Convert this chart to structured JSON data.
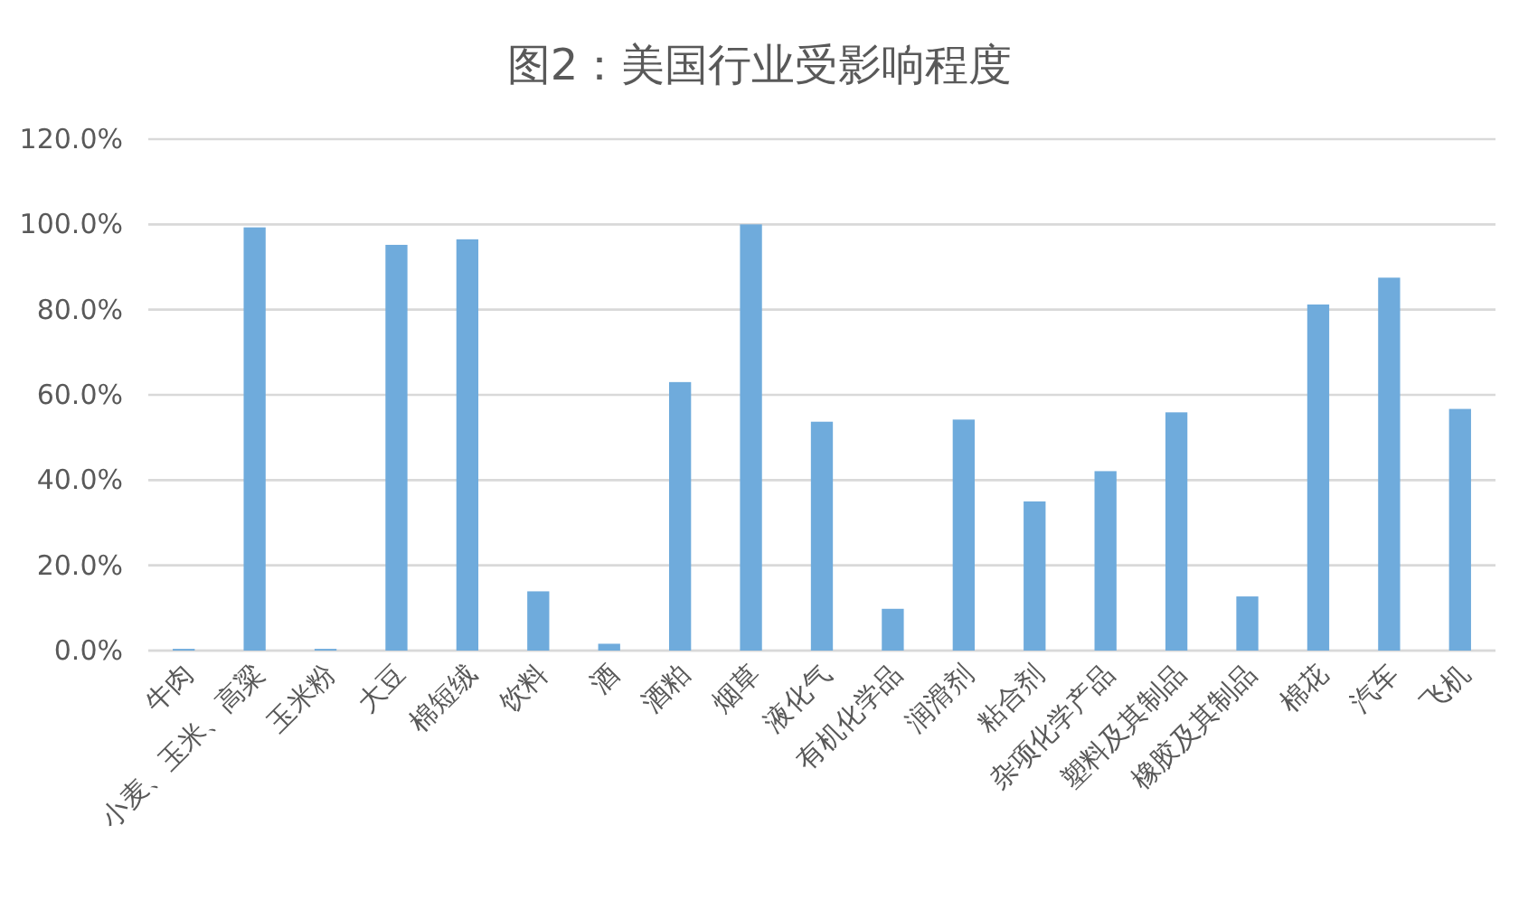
{
  "chart_data": {
    "type": "bar",
    "title": "图2：美国行业受影响程度",
    "categories": [
      "牛肉",
      "小麦、玉米、高粱",
      "玉米粉",
      "大豆",
      "棉短绒",
      "饮料",
      "酒",
      "酒粕",
      "烟草",
      "液化气",
      "有机化学品",
      "润滑剂",
      "粘合剂",
      "杂项化学产品",
      "塑料及其制品",
      "橡胶及其制品",
      "棉花",
      "汽车",
      "飞机"
    ],
    "values": [
      0.4,
      99.3,
      0.4,
      95.2,
      96.5,
      13.9,
      1.6,
      63.0,
      100.0,
      53.7,
      9.8,
      54.2,
      35.0,
      42.1,
      55.9,
      12.7,
      81.2,
      87.5,
      56.7
    ],
    "color": "#6fabdc",
    "ylim": [
      0,
      120
    ],
    "yticks": [
      {
        "value": 0,
        "label": "0.0%"
      },
      {
        "value": 20,
        "label": "20.0%"
      },
      {
        "value": 40,
        "label": "40.0%"
      },
      {
        "value": 60,
        "label": "60.0%"
      },
      {
        "value": 80,
        "label": "80.0%"
      },
      {
        "value": 100,
        "label": "100.0%"
      },
      {
        "value": 120,
        "label": "120.0%"
      }
    ],
    "grid": "y"
  }
}
